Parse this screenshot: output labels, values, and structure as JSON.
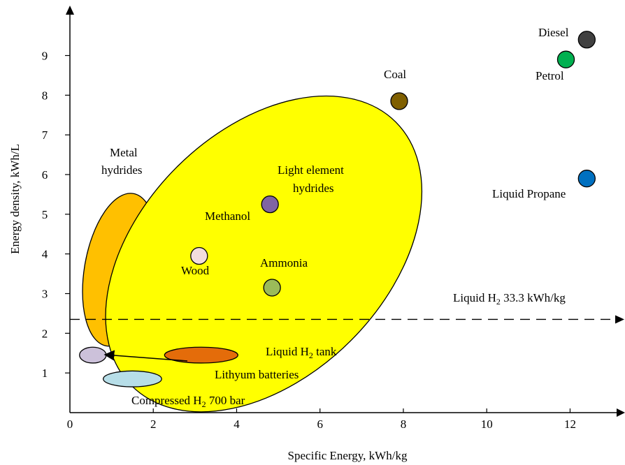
{
  "chart_data": {
    "type": "scatter",
    "title": "",
    "xlabel": "Specific Energy, kWh/kg",
    "ylabel": "Energy density, kWh/L",
    "xlim": [
      0,
      13.2
    ],
    "ylim": [
      0,
      10.1
    ],
    "x_ticks": [
      0,
      2,
      4,
      6,
      8,
      10,
      12
    ],
    "y_ticks": [
      1,
      2,
      3,
      4,
      5,
      6,
      7,
      8,
      9
    ],
    "grid": false,
    "legend": "none",
    "points": [
      {
        "name": "Diesel",
        "x": 12.4,
        "y": 9.4,
        "color": "#404040"
      },
      {
        "name": "Petrol",
        "x": 11.9,
        "y": 8.9,
        "color": "#00b050"
      },
      {
        "name": "Coal",
        "x": 7.9,
        "y": 7.85,
        "color": "#7f5f00"
      },
      {
        "name": "Liquid Propane",
        "x": 12.4,
        "y": 5.9,
        "color": "#0070c0"
      },
      {
        "name": "Methanol",
        "x": 4.8,
        "y": 5.25,
        "color": "#8064a2"
      },
      {
        "name": "Wood",
        "x": 3.1,
        "y": 3.95,
        "color": "#f2dcdb"
      },
      {
        "name": "Ammonia",
        "x": 4.85,
        "y": 3.15,
        "color": "#9bbb59"
      }
    ],
    "regions": [
      {
        "name": "Metal hydrides",
        "label_lines": [
          "Metal",
          "hydrides"
        ],
        "cx": 1.2,
        "cy": 3.6,
        "rx": 0.85,
        "ry": 1.95,
        "rotation": 10,
        "fill": "#ffc000"
      },
      {
        "name": "Light element hydrides",
        "label_lines": [
          "Light element",
          "hydrides"
        ],
        "cx": 4.65,
        "cy": 4.0,
        "rx": 2.95,
        "ry": 4.7,
        "rotation": 45,
        "fill": "#ffff00"
      },
      {
        "name": "Liquid H2 tank",
        "cx": 3.15,
        "cy": 1.45,
        "rx": 0.88,
        "ry": 0.2,
        "rotation": 0,
        "fill": "#e46c0a"
      },
      {
        "name": "Lithyum batteries",
        "cx": 0.55,
        "cy": 1.45,
        "rx": 0.32,
        "ry": 0.2,
        "rotation": 0,
        "fill": "#ccc1da"
      },
      {
        "name": "Compressed H2 700 bar",
        "cx": 1.5,
        "cy": 0.85,
        "rx": 0.7,
        "ry": 0.2,
        "rotation": 0,
        "fill": "#b7dee8"
      }
    ],
    "reference_lines": [
      {
        "name": "Liquid H2 33.3 kWh/kg",
        "y": 2.35,
        "style": "dashed"
      }
    ]
  },
  "labels": {
    "xlabel": "Specific Energy, kWh/kg",
    "ylabel": "Energy density, kWh/L",
    "diesel": "Diesel",
    "petrol": "Petrol",
    "coal": "Coal",
    "liquid_propane": "Liquid Propane",
    "methanol": "Methanol",
    "wood": "Wood",
    "ammonia": "Ammonia",
    "metal_hydrides_1": "Metal",
    "metal_hydrides_2": "hydrides",
    "light_element_1": "Light element",
    "light_element_2": "hydrides",
    "liquid_h2_tank_pre": "Liquid H",
    "liquid_h2_tank_sub": "2",
    "liquid_h2_tank_post": " tank",
    "lithyum": "Lithyum batteries",
    "compressed_pre": "Compressed H",
    "compressed_sub": "2",
    "compressed_post": " 700 bar",
    "liquid_h2_line_pre": "Liquid H",
    "liquid_h2_line_sub": "2",
    "liquid_h2_line_post": " 33.3 kWh/kg"
  }
}
